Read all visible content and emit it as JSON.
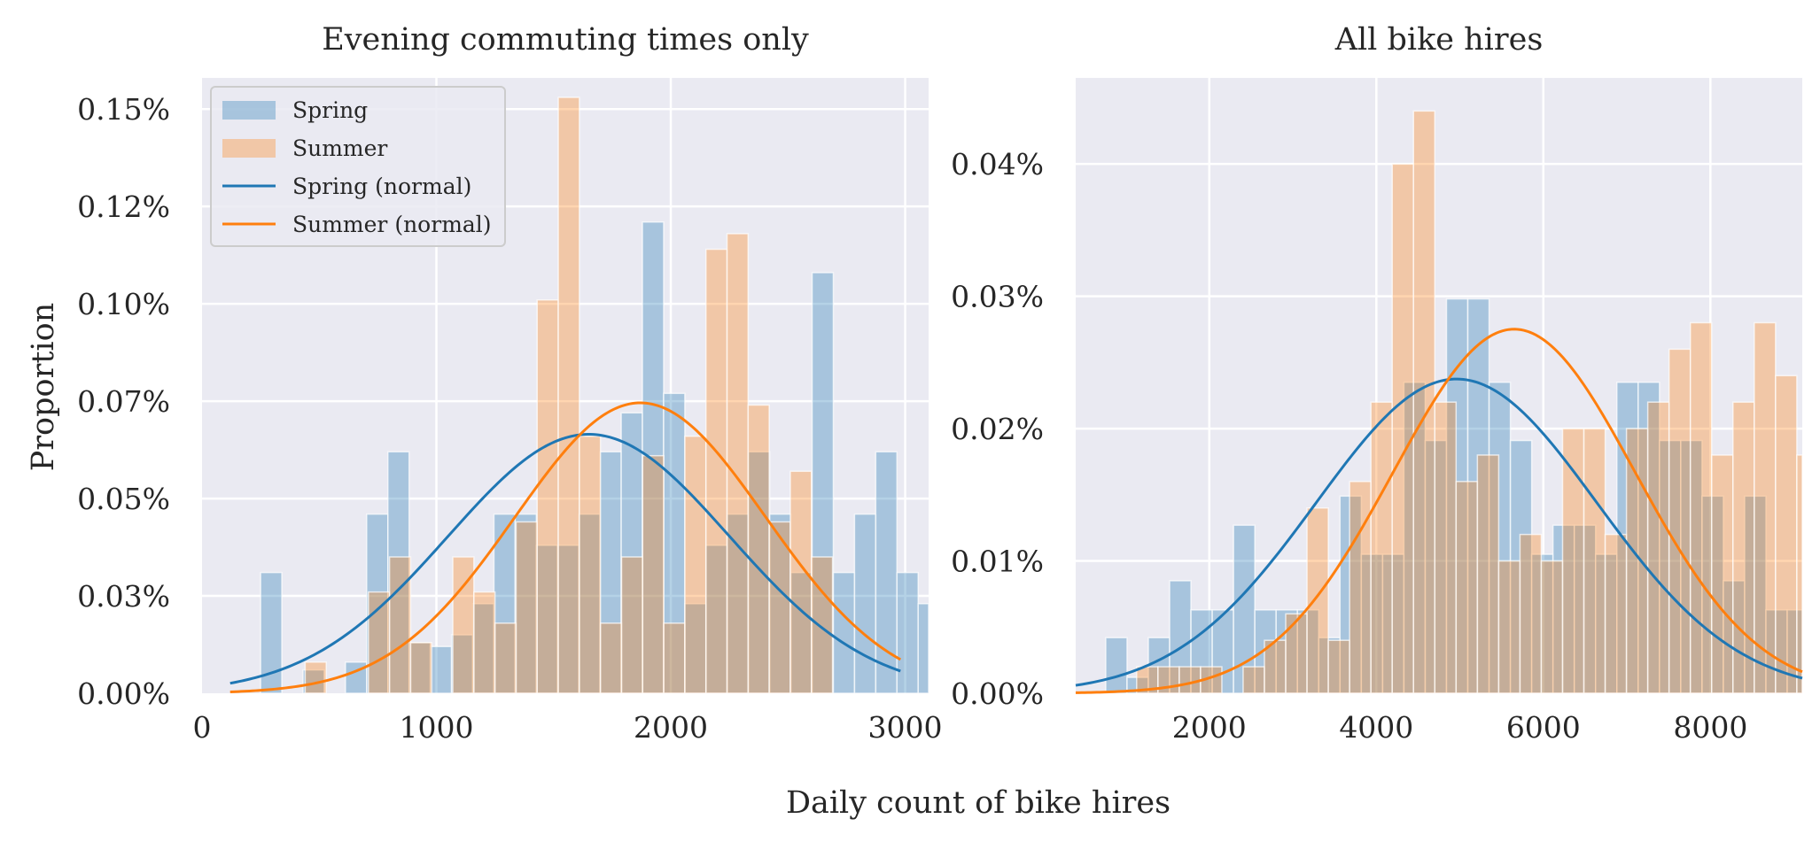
{
  "figure": {
    "xlabel": "Daily count of bike hires",
    "ylabel": "Proportion"
  },
  "colors": {
    "spring": "#1f77b4",
    "summer": "#ff7f0e",
    "panel_bg": "#eaeaf2",
    "grid": "#ffffff"
  },
  "chart_data": [
    {
      "type": "bar",
      "title": "Evening commuting times only",
      "xlim": [
        0,
        3100
      ],
      "ylim": [
        0,
        0.00158
      ],
      "xticks": [
        0,
        1000,
        2000,
        3000
      ],
      "xtick_labels": [
        "0",
        "1000",
        "2000",
        "3000"
      ],
      "yticks": [
        0,
        0.00025,
        0.0005,
        0.00075,
        0.001,
        0.00125,
        0.0015
      ],
      "ytick_labels": [
        "0.00%",
        "0.03%",
        "0.05%",
        "0.07%",
        "0.10%",
        "0.12%",
        "0.15%"
      ],
      "grid": true,
      "legend_position": "top-left",
      "legend": [
        "Spring",
        "Summer",
        "Spring (normal)",
        "Summer (normal)"
      ],
      "series": [
        {
          "name": "Spring",
          "kind": "histogram",
          "bin_start": 250,
          "bin_width": 90.5,
          "values": [
            0.00031,
            0,
            6e-05,
            0,
            8e-05,
            0.00046,
            0.00062,
            0.00013,
            0.00012,
            0.00015,
            0.00023,
            0.00046,
            0.00046,
            0.00038,
            0.00038,
            0.00046,
            0.00062,
            0.00072,
            0.00121,
            0.00077,
            0.00023,
            0.00038,
            0.00046,
            0.00062,
            0.00046,
            0.00031,
            0.00108,
            0.00031,
            0.00046,
            0.00062,
            0.00031,
            0.00023,
            0.00015,
            8e-05,
            0,
            8e-05
          ]
        },
        {
          "name": "Summer",
          "kind": "histogram",
          "bin_start": 440,
          "bin_width": 90,
          "values": [
            8e-05,
            0,
            0,
            0.00026,
            0.00035,
            0.00013,
            0,
            0.00035,
            0.00026,
            0.00018,
            0.00044,
            0.00101,
            0.00153,
            0.00066,
            0.00018,
            0.00035,
            0.00061,
            0.00018,
            0.00066,
            0.00114,
            0.00118,
            0.00074,
            0.00044,
            0.00057,
            0.00035
          ]
        },
        {
          "name": "Spring (normal)",
          "kind": "normal",
          "mean": 1650,
          "sd": 600,
          "x_range": [
            120,
            2980
          ]
        },
        {
          "name": "Summer (normal)",
          "kind": "normal",
          "mean": 1870,
          "sd": 535,
          "x_range": [
            120,
            2980
          ]
        }
      ]
    },
    {
      "type": "bar",
      "title": "All bike hires",
      "xlim": [
        400,
        9100
      ],
      "ylim": [
        0,
        0.000465
      ],
      "xticks": [
        2000,
        4000,
        6000,
        8000
      ],
      "xtick_labels": [
        "2000",
        "4000",
        "6000",
        "8000"
      ],
      "yticks": [
        0,
        0.0001,
        0.0002,
        0.0003,
        0.0004
      ],
      "ytick_labels": [
        "0.00%",
        "0.01%",
        "0.02%",
        "0.03%",
        "0.04%"
      ],
      "grid": true,
      "series": [
        {
          "name": "Spring",
          "kind": "histogram",
          "bin_start": 760,
          "bin_width": 255,
          "values": [
            4.2e-05,
            1.2e-05,
            4.2e-05,
            8.5e-05,
            6.3e-05,
            6.3e-05,
            0.000127,
            6.3e-05,
            6.3e-05,
            6.3e-05,
            4.2e-05,
            0.000149,
            0.000105,
            0.000105,
            0.000235,
            0.000191,
            0.000298,
            0.000298,
            0.000235,
            0.000191,
            0.000105,
            0.000127,
            0.000127,
            0.000105,
            0.000235,
            0.000235,
            0.000191,
            0.000191,
            0.000149,
            8.5e-05,
            0.000149,
            6.3e-05,
            6.3e-05,
            4.2e-05
          ]
        },
        {
          "name": "Summer",
          "kind": "histogram",
          "bin_start": 1130,
          "bin_width": 255,
          "values": [
            2e-05,
            2e-05,
            2e-05,
            2e-05,
            0,
            2e-05,
            4e-05,
            6e-05,
            0.00014,
            4e-05,
            0.00016,
            0.00022,
            0.0004,
            0.00044,
            0.00022,
            0.00016,
            0.00018,
            0.0001,
            0.00012,
            0.0001,
            0.0002,
            0.0002,
            0.00012,
            0.0002,
            0.00022,
            0.00026,
            0.00028,
            0.00018,
            0.00022,
            0.00028,
            0.00024,
            0.00018,
            8e-05,
            2e-05
          ]
        },
        {
          "name": "Spring (normal)",
          "kind": "normal",
          "mean": 4960,
          "sd": 1680,
          "x_range": [
            400,
            9100
          ]
        },
        {
          "name": "Summer (normal)",
          "kind": "normal",
          "mean": 5650,
          "sd": 1450,
          "x_range": [
            400,
            9100
          ]
        }
      ]
    }
  ]
}
